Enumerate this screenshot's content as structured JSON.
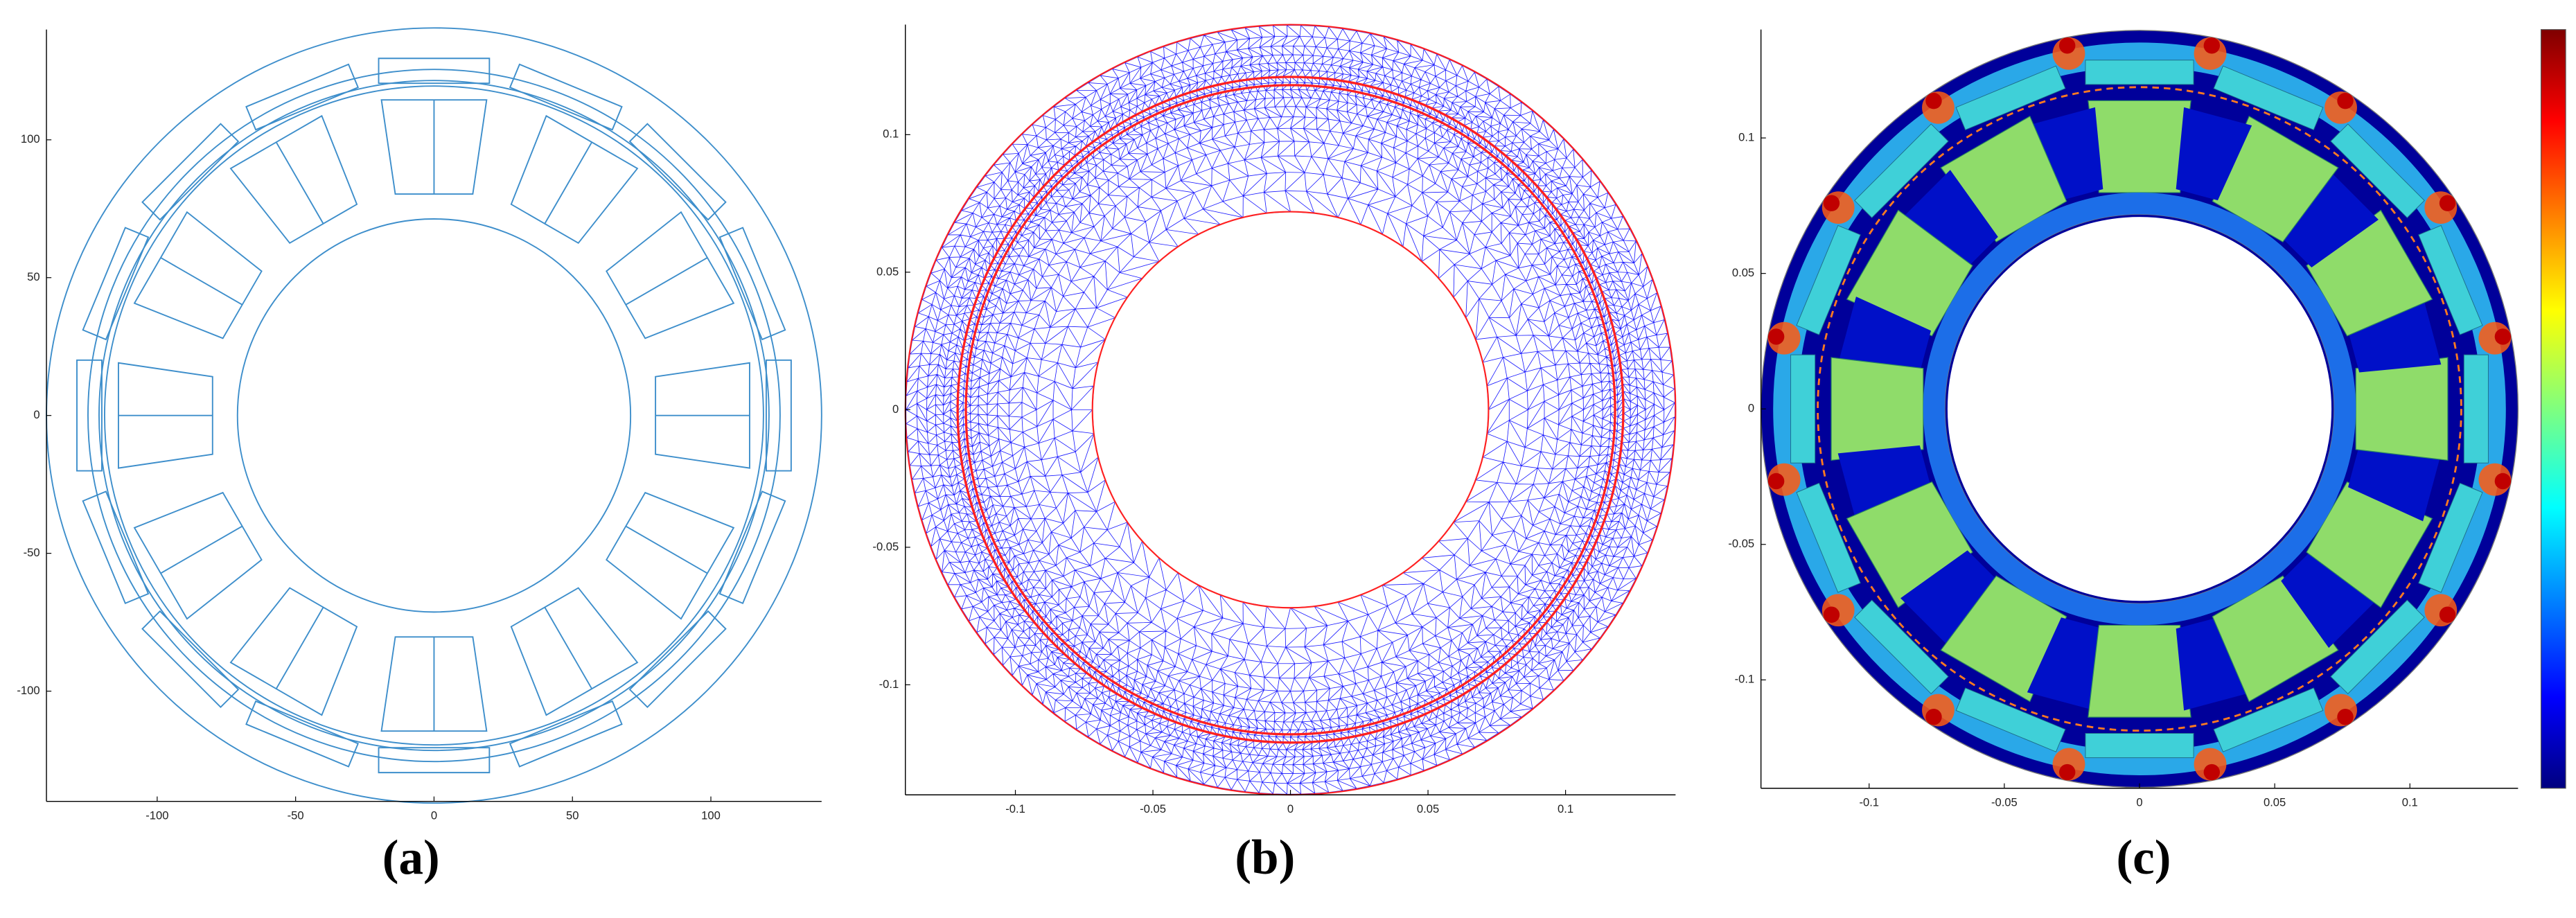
{
  "panels": [
    {
      "label": "(a)",
      "xlim": [
        -140,
        140
      ],
      "ylim": [
        -140,
        140
      ],
      "xticks": [
        -100,
        -50,
        0,
        50,
        100
      ],
      "yticks": [
        -100,
        -50,
        0,
        50,
        100
      ]
    },
    {
      "label": "(b)",
      "xlim": [
        -0.14,
        0.14
      ],
      "ylim": [
        -0.14,
        0.14
      ],
      "xticks": [
        -0.1,
        -0.05,
        0,
        0.05,
        0.1
      ],
      "yticks": [
        -0.1,
        -0.05,
        0,
        0.05,
        0.1
      ]
    },
    {
      "label": "(c)",
      "xlim": [
        -0.14,
        0.14
      ],
      "ylim": [
        -0.14,
        0.14
      ],
      "xticks": [
        -0.1,
        -0.05,
        0,
        0.05,
        0.1
      ],
      "yticks": [
        -0.1,
        -0.05,
        0,
        0.05,
        0.1
      ]
    }
  ]
}
